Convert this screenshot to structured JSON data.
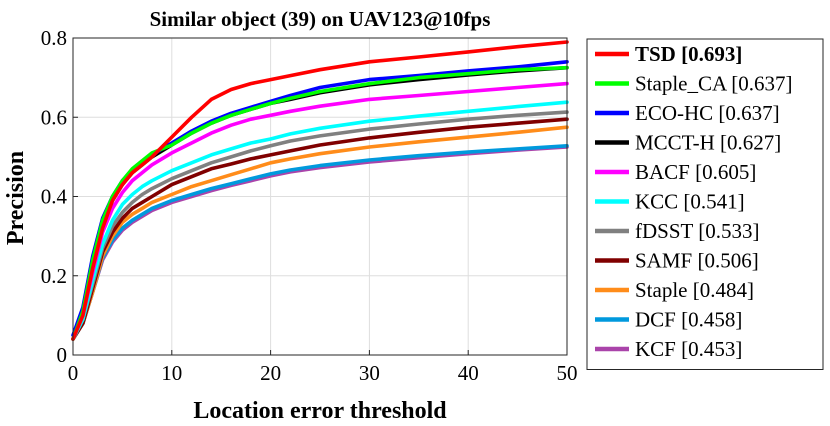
{
  "chart_data": {
    "type": "line",
    "title": "Similar object (39) on UAV123@10fps",
    "xlabel": "Location error threshold",
    "ylabel": "Precision",
    "xlim": [
      0,
      50
    ],
    "ylim": [
      0,
      0.8
    ],
    "xticks": [
      "0",
      "10",
      "20",
      "30",
      "40",
      "50"
    ],
    "yticks": [
      "0",
      "0.2",
      "0.4",
      "0.6",
      "0.8"
    ],
    "grid": true,
    "legend_position": "outside-right",
    "x": [
      0,
      1,
      2,
      3,
      4,
      5,
      6,
      7,
      8,
      10,
      12,
      14,
      16,
      18,
      20,
      22,
      25,
      30,
      35,
      40,
      45,
      50
    ],
    "series": [
      {
        "name": "TSD [0.693]",
        "color": "#ff0000",
        "bold": true,
        "values": [
          0.04,
          0.1,
          0.22,
          0.32,
          0.39,
          0.43,
          0.46,
          0.48,
          0.5,
          0.55,
          0.6,
          0.645,
          0.67,
          0.685,
          0.695,
          0.705,
          0.72,
          0.74,
          0.752,
          0.765,
          0.778,
          0.79
        ]
      },
      {
        "name": "Staple_CA [0.637]",
        "color": "#00ff00",
        "values": [
          0.04,
          0.11,
          0.24,
          0.34,
          0.4,
          0.44,
          0.47,
          0.49,
          0.51,
          0.53,
          0.56,
          0.585,
          0.605,
          0.62,
          0.635,
          0.648,
          0.665,
          0.685,
          0.7,
          0.71,
          0.72,
          0.725
        ]
      },
      {
        "name": "ECO-HC [0.637]",
        "color": "#0000ff",
        "values": [
          0.05,
          0.12,
          0.25,
          0.345,
          0.4,
          0.44,
          0.465,
          0.485,
          0.505,
          0.535,
          0.565,
          0.59,
          0.61,
          0.625,
          0.64,
          0.655,
          0.675,
          0.695,
          0.705,
          0.717,
          0.727,
          0.74
        ]
      },
      {
        "name": "MCCT-H [0.627]",
        "color": "#000000",
        "values": [
          0.04,
          0.11,
          0.23,
          0.33,
          0.39,
          0.43,
          0.46,
          0.48,
          0.5,
          0.53,
          0.56,
          0.585,
          0.605,
          0.62,
          0.635,
          0.645,
          0.662,
          0.682,
          0.695,
          0.707,
          0.717,
          0.725
        ]
      },
      {
        "name": "BACF [0.605]",
        "color": "#ff00ff",
        "values": [
          0.04,
          0.1,
          0.21,
          0.31,
          0.37,
          0.41,
          0.44,
          0.46,
          0.48,
          0.51,
          0.535,
          0.56,
          0.58,
          0.595,
          0.605,
          0.615,
          0.628,
          0.645,
          0.655,
          0.665,
          0.675,
          0.685
        ]
      },
      {
        "name": "KCC [0.541]",
        "color": "#00ffff",
        "values": [
          0.04,
          0.09,
          0.19,
          0.28,
          0.34,
          0.38,
          0.405,
          0.425,
          0.44,
          0.465,
          0.485,
          0.505,
          0.52,
          0.535,
          0.545,
          0.558,
          0.572,
          0.59,
          0.603,
          0.615,
          0.627,
          0.638
        ]
      },
      {
        "name": "fDSST [0.533]",
        "color": "#808080",
        "values": [
          0.04,
          0.09,
          0.18,
          0.27,
          0.325,
          0.36,
          0.385,
          0.405,
          0.42,
          0.445,
          0.465,
          0.485,
          0.5,
          0.515,
          0.528,
          0.54,
          0.553,
          0.57,
          0.583,
          0.595,
          0.605,
          0.613
        ]
      },
      {
        "name": "SAMF [0.506]",
        "color": "#800000",
        "values": [
          0.04,
          0.08,
          0.17,
          0.26,
          0.31,
          0.345,
          0.37,
          0.385,
          0.4,
          0.43,
          0.45,
          0.47,
          0.482,
          0.495,
          0.505,
          0.515,
          0.53,
          0.548,
          0.562,
          0.575,
          0.585,
          0.595
        ]
      },
      {
        "name": "Staple [0.484]",
        "color": "#ff8c1a",
        "values": [
          0.04,
          0.08,
          0.16,
          0.25,
          0.3,
          0.335,
          0.355,
          0.37,
          0.385,
          0.405,
          0.425,
          0.44,
          0.455,
          0.47,
          0.485,
          0.495,
          0.508,
          0.525,
          0.538,
          0.55,
          0.562,
          0.575
        ]
      },
      {
        "name": "DCF [0.458]",
        "color": "#0099dd",
        "values": [
          0.04,
          0.08,
          0.16,
          0.245,
          0.29,
          0.32,
          0.34,
          0.355,
          0.37,
          0.39,
          0.405,
          0.42,
          0.432,
          0.445,
          0.457,
          0.467,
          0.478,
          0.492,
          0.503,
          0.512,
          0.52,
          0.528
        ]
      },
      {
        "name": "KCF [0.453]",
        "color": "#aa44aa",
        "values": [
          0.04,
          0.08,
          0.16,
          0.24,
          0.285,
          0.315,
          0.335,
          0.35,
          0.365,
          0.385,
          0.4,
          0.415,
          0.428,
          0.44,
          0.452,
          0.462,
          0.473,
          0.487,
          0.498,
          0.508,
          0.517,
          0.525
        ]
      }
    ]
  }
}
